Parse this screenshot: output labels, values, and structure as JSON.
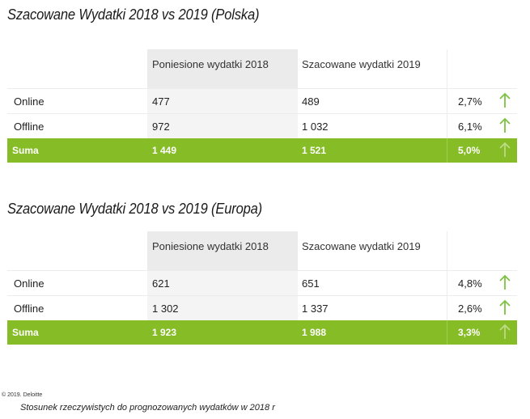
{
  "tables": [
    {
      "title": "Szacowane Wydatki 2018 vs 2019 (Polska)",
      "header": {
        "col1": "Poniesione wydatki 2018",
        "col2": "Szacowane wydatki 2019"
      },
      "rows": [
        {
          "label": "Online",
          "v2018": "477",
          "v2019": "489",
          "pct": "2,7%",
          "trend": "up-arrow-icon"
        },
        {
          "label": "Offline",
          "v2018": "972",
          "v2019": "1 032",
          "pct": "6,1%",
          "trend": "up-arrow-icon"
        }
      ],
      "sum": {
        "label": "Suma",
        "v2018": "1 449",
        "v2019": "1 521",
        "pct": "5,0%",
        "trend": "up-arrow-icon"
      }
    },
    {
      "title": "Szacowane Wydatki 2018 vs 2019 (Europa)",
      "header": {
        "col1": "Poniesione wydatki 2018",
        "col2": "Szacowane wydatki 2019"
      },
      "rows": [
        {
          "label": "Online",
          "v2018": "621",
          "v2019": "651",
          "pct": "4,8%",
          "trend": "up-arrow-icon"
        },
        {
          "label": "Offline",
          "v2018": "1 302",
          "v2019": "1 337",
          "pct": "2,6%",
          "trend": "up-arrow-icon"
        }
      ],
      "sum": {
        "label": "Suma",
        "v2018": "1 923",
        "v2019": "1 988",
        "pct": "3,3%",
        "trend": "up-arrow-icon"
      }
    }
  ],
  "footer": {
    "copyright": "© 2019. Deloitte",
    "note": "Stosunek rzeczywistych do prognozowanych wydatków w 2018 r"
  },
  "colors": {
    "accent_green": "#86bc25",
    "arrow_green": "#7ec242",
    "header_gray": "#ebebeb"
  }
}
